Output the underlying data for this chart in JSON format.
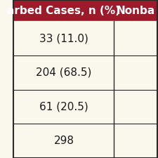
{
  "header_left": "arbed Cases, n (%)",
  "header_right": "Nonba",
  "rows": [
    "33 (11.0)",
    "204 (68.5)",
    "61 (20.5)",
    "298"
  ],
  "header_bg": "#9B1B2A",
  "header_text_color": "#FFFFFF",
  "row_bg": "#FAF7EC",
  "cell_text_color": "#1a1a1a",
  "divider_color": "#2a2a2a",
  "header_fontsize": 11,
  "cell_fontsize": 11,
  "fig_width": 2.25,
  "fig_height": 2.25
}
